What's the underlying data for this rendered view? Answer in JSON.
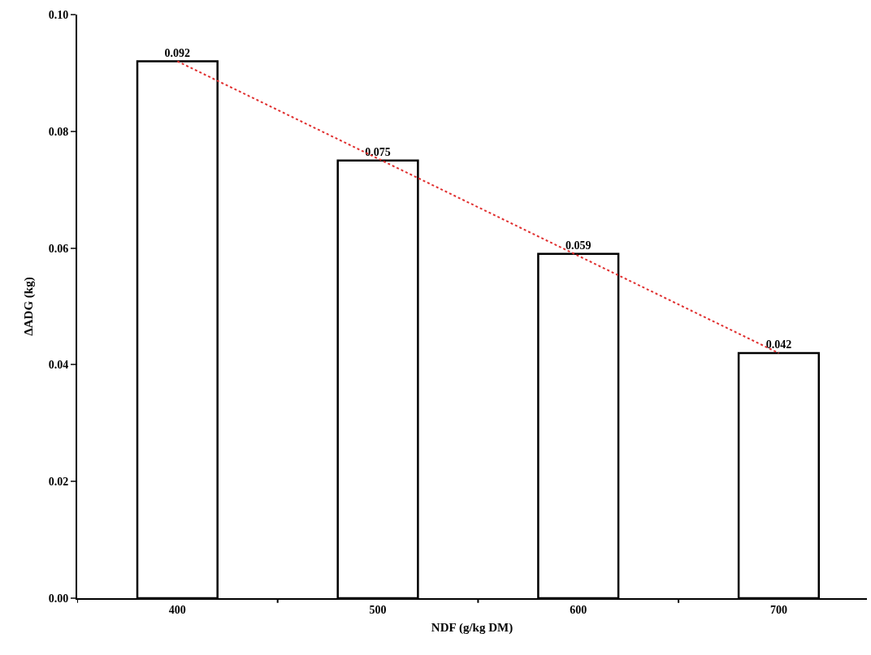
{
  "chart_data": {
    "type": "bar",
    "xlabel": "NDF (g/kg DM)",
    "ylabel": "ΔADG (kg)",
    "categories": [
      "400",
      "500",
      "600",
      "700"
    ],
    "series": [
      {
        "color": "#ffffff",
        "values": [
          0.092,
          0.075,
          0.059,
          0.042
        ],
        "value_labels": [
          "0.092",
          "0.075",
          "0.059",
          "0.042"
        ]
      },
      {
        "type": "line",
        "color": "#e03030",
        "line_style": "dotted",
        "marker": "none",
        "x": [
          "400",
          "700"
        ],
        "values": [
          0.092,
          0.042
        ]
      }
    ],
    "ylim": [
      0,
      0.1
    ],
    "yticks": [
      {
        "value": 0,
        "label": "0.00"
      },
      {
        "value": 0.02,
        "label": "0.02"
      },
      {
        "value": 0.04,
        "label": "0.04"
      },
      {
        "value": 0.06,
        "label": "0.06"
      },
      {
        "value": 0.08,
        "label": "0.08"
      },
      {
        "value": 0.1,
        "label": "0.10"
      }
    ]
  }
}
